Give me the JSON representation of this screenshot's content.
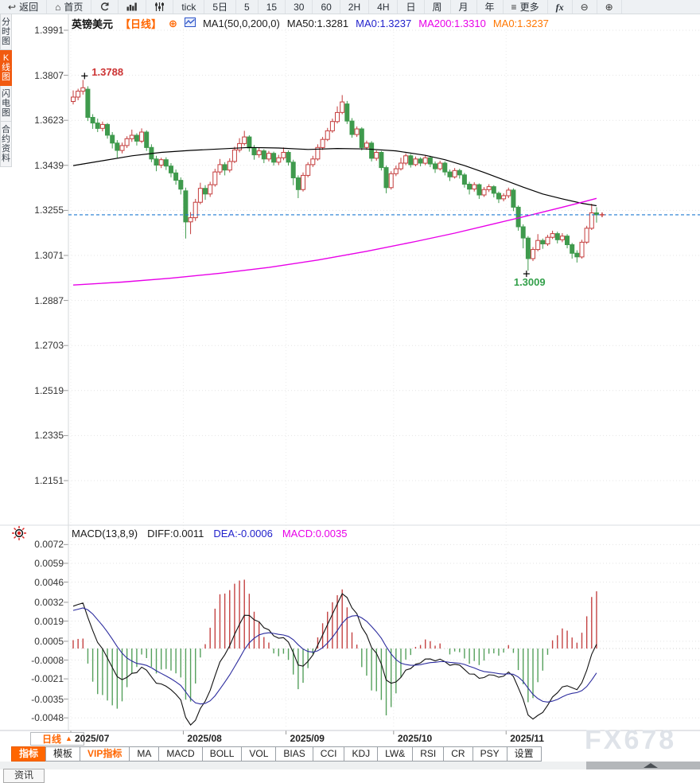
{
  "window": {
    "watermark": "FX678"
  },
  "toolbar": {
    "items": [
      {
        "id": "back",
        "icon": "back",
        "label": "返回"
      },
      {
        "id": "home",
        "icon": "home",
        "label": "首页"
      },
      {
        "id": "refresh",
        "icon": "refresh",
        "label": ""
      },
      {
        "id": "chart-style",
        "icon": "bars",
        "label": ""
      },
      {
        "id": "indicator-settings",
        "icon": "sliders",
        "label": ""
      },
      {
        "id": "tick",
        "label": "tick"
      },
      {
        "id": "range-5d",
        "label": "5日"
      },
      {
        "id": "period-5m",
        "label": "5"
      },
      {
        "id": "period-15m",
        "label": "15"
      },
      {
        "id": "period-30m",
        "label": "30"
      },
      {
        "id": "period-60m",
        "label": "60"
      },
      {
        "id": "period-2h",
        "label": "2H"
      },
      {
        "id": "period-4h",
        "label": "4H"
      },
      {
        "id": "period-day",
        "label": "日"
      },
      {
        "id": "period-week",
        "label": "周"
      },
      {
        "id": "period-month",
        "label": "月"
      },
      {
        "id": "period-year",
        "label": "年"
      },
      {
        "id": "more",
        "icon": "menu",
        "label": "更多"
      },
      {
        "id": "fx",
        "icon": "fx",
        "label": "fx"
      },
      {
        "id": "zoom-out",
        "icon": "zoom-out",
        "label": ""
      },
      {
        "id": "zoom-in",
        "icon": "zoom-in",
        "label": ""
      }
    ]
  },
  "sidebar": {
    "items": [
      {
        "id": "time-share-chart",
        "label": "分时图",
        "active": false
      },
      {
        "id": "kline-chart",
        "label": "K线图",
        "active": true
      },
      {
        "id": "lightning-chart",
        "label": "闪电图",
        "active": false
      },
      {
        "id": "contract-info",
        "label": "合约资料",
        "active": false
      }
    ]
  },
  "legend": {
    "symbol": "英镑美元",
    "period": "【日线】",
    "plus_icon": "⊕",
    "ma1": "MA1(50,0,200,0)",
    "ma50": "MA50:1.3281",
    "ma0_blue": "MA0:1.3237",
    "ma200": "MA200:1.3310",
    "ma0_orange": "MA0:1.3237"
  },
  "macd_header": {
    "title": "MACD(13,8,9)",
    "diff": "DIFF:0.0011",
    "dea": "DEA:-0.0006",
    "macd": "MACD:0.0035"
  },
  "annotations": {
    "high": "1.3788",
    "low": "1.3009"
  },
  "bottom": {
    "period_selector": "日线",
    "tabs": [
      {
        "label": "指标",
        "state": "active"
      },
      {
        "label": "模板"
      },
      {
        "label": "VIP指标",
        "state": "vip"
      },
      {
        "label": "MA"
      },
      {
        "label": "MACD"
      },
      {
        "label": "BOLL"
      },
      {
        "label": "VOL"
      },
      {
        "label": "BIAS"
      },
      {
        "label": "CCI"
      },
      {
        "label": "KDJ"
      },
      {
        "label": "LW&"
      },
      {
        "label": "RSI"
      },
      {
        "label": "CR"
      },
      {
        "label": "PSY"
      },
      {
        "label": "设置"
      }
    ],
    "news_tab": "资讯"
  },
  "chart_data": {
    "type": "candlestick+macd",
    "symbol": "英镑美元 (GBP/USD)",
    "timeframe": "日线 (daily)",
    "title": "英镑美元【日线】",
    "price_axis": [
      "1.3991",
      "1.3807",
      "1.3623",
      "1.3439",
      "1.3255",
      "1.3071",
      "1.2887",
      "1.2703",
      "1.2519",
      "1.2335",
      "1.2151"
    ],
    "macd_axis": [
      "0.0072",
      "0.0059",
      "0.0046",
      "0.0032",
      "0.0019",
      "0.0005",
      "-0.0008",
      "-0.0021",
      "-0.0035",
      "-0.0048"
    ],
    "months": [
      {
        "label": "2025/07",
        "idx": 0
      },
      {
        "label": "2025/08",
        "idx": 23
      },
      {
        "label": "2025/09",
        "idx": 44
      },
      {
        "label": "2025/10",
        "idx": 66
      },
      {
        "label": "2025/11",
        "idx": 89
      }
    ],
    "current_price": 1.3237,
    "high_idx": 2,
    "low_idx": 93,
    "macd_params": [
      13,
      8,
      9
    ],
    "macd_last": {
      "diff": 0.0011,
      "dea": -0.0006,
      "macd": 0.0035
    },
    "ma_last": {
      "ma50": 1.3281,
      "ma200": 1.331
    },
    "macd_warmup": [
      1.347,
      1.35,
      1.353,
      1.3558,
      1.3585,
      1.3605,
      1.3625,
      1.3618,
      1.364,
      1.3658,
      1.3648,
      1.3668,
      1.368,
      1.3692,
      1.37
    ],
    "ohlc": [
      [
        1.37,
        1.3745,
        1.3688,
        1.3718
      ],
      [
        1.3718,
        1.3752,
        1.3705,
        1.3742
      ],
      [
        1.3742,
        1.3788,
        1.3728,
        1.3756
      ],
      [
        1.375,
        1.3762,
        1.362,
        1.3635
      ],
      [
        1.3635,
        1.3648,
        1.3588,
        1.3612
      ],
      [
        1.3612,
        1.363,
        1.3575,
        1.359
      ],
      [
        1.359,
        1.3618,
        1.3578,
        1.3606
      ],
      [
        1.3606,
        1.3612,
        1.3548,
        1.3562
      ],
      [
        1.3562,
        1.3575,
        1.3508,
        1.353
      ],
      [
        1.353,
        1.3542,
        1.347,
        1.35
      ],
      [
        1.35,
        1.3532,
        1.3488,
        1.352
      ],
      [
        1.352,
        1.3558,
        1.351,
        1.3548
      ],
      [
        1.3548,
        1.3585,
        1.3535,
        1.3562
      ],
      [
        1.3562,
        1.357,
        1.352,
        1.3538
      ],
      [
        1.3538,
        1.359,
        1.353,
        1.3575
      ],
      [
        1.3575,
        1.3582,
        1.3498,
        1.3512
      ],
      [
        1.3512,
        1.3525,
        1.3452,
        1.3465
      ],
      [
        1.3465,
        1.3478,
        1.3415,
        1.344
      ],
      [
        1.344,
        1.347,
        1.3428,
        1.3462
      ],
      [
        1.3462,
        1.3472,
        1.342,
        1.3436
      ],
      [
        1.3436,
        1.3448,
        1.339,
        1.3408
      ],
      [
        1.3408,
        1.3422,
        1.336,
        1.3378
      ],
      [
        1.3378,
        1.339,
        1.332,
        1.3342
      ],
      [
        1.3335,
        1.3348,
        1.314,
        1.3208
      ],
      [
        1.3208,
        1.3248,
        1.3158,
        1.3225
      ],
      [
        1.3225,
        1.3302,
        1.3212,
        1.3288
      ],
      [
        1.3288,
        1.3368,
        1.328,
        1.3345
      ],
      [
        1.3345,
        1.3358,
        1.3298,
        1.3322
      ],
      [
        1.3322,
        1.3372,
        1.331,
        1.336
      ],
      [
        1.336,
        1.3425,
        1.3352,
        1.3412
      ],
      [
        1.3412,
        1.3465,
        1.34,
        1.3442
      ],
      [
        1.3442,
        1.3452,
        1.3398,
        1.342
      ],
      [
        1.342,
        1.3468,
        1.341,
        1.3455
      ],
      [
        1.3455,
        1.3515,
        1.3448,
        1.3502
      ],
      [
        1.3502,
        1.355,
        1.3492,
        1.3528
      ],
      [
        1.3528,
        1.358,
        1.352,
        1.3555
      ],
      [
        1.3555,
        1.3562,
        1.3495,
        1.351
      ],
      [
        1.351,
        1.3522,
        1.3462,
        1.3482
      ],
      [
        1.3482,
        1.351,
        1.347,
        1.3498
      ],
      [
        1.3498,
        1.3505,
        1.3448,
        1.3465
      ],
      [
        1.3465,
        1.3498,
        1.3455,
        1.3488
      ],
      [
        1.3488,
        1.3495,
        1.3438,
        1.3452
      ],
      [
        1.3452,
        1.3482,
        1.344,
        1.347
      ],
      [
        1.347,
        1.3512,
        1.346,
        1.3492
      ],
      [
        1.3492,
        1.35,
        1.3438,
        1.3452
      ],
      [
        1.3452,
        1.3462,
        1.3358,
        1.3388
      ],
      [
        1.3388,
        1.3398,
        1.3305,
        1.334
      ],
      [
        1.334,
        1.341,
        1.3332,
        1.3398
      ],
      [
        1.3398,
        1.3452,
        1.339,
        1.3442
      ],
      [
        1.3442,
        1.3478,
        1.3432,
        1.3465
      ],
      [
        1.3465,
        1.3525,
        1.3458,
        1.3512
      ],
      [
        1.3512,
        1.3555,
        1.3502,
        1.3545
      ],
      [
        1.3545,
        1.3592,
        1.3538,
        1.358
      ],
      [
        1.358,
        1.363,
        1.3572,
        1.3618
      ],
      [
        1.3618,
        1.368,
        1.361,
        1.3655
      ],
      [
        1.3655,
        1.3726,
        1.3648,
        1.3698
      ],
      [
        1.369,
        1.3702,
        1.3608,
        1.362
      ],
      [
        1.362,
        1.3632,
        1.3552,
        1.3565
      ],
      [
        1.3565,
        1.3598,
        1.3555,
        1.3588
      ],
      [
        1.3588,
        1.3595,
        1.35,
        1.3512
      ],
      [
        1.3512,
        1.354,
        1.3502,
        1.353
      ],
      [
        1.353,
        1.3538,
        1.3455,
        1.3468
      ],
      [
        1.3468,
        1.35,
        1.3458,
        1.3492
      ],
      [
        1.3492,
        1.3498,
        1.3418,
        1.343
      ],
      [
        1.343,
        1.3438,
        1.3325,
        1.3348
      ],
      [
        1.3348,
        1.3415,
        1.334,
        1.3405
      ],
      [
        1.3405,
        1.3438,
        1.3395,
        1.3425
      ],
      [
        1.3425,
        1.347,
        1.3418,
        1.3448
      ],
      [
        1.3448,
        1.3488,
        1.344,
        1.3478
      ],
      [
        1.3478,
        1.3485,
        1.343,
        1.3442
      ],
      [
        1.3442,
        1.3475,
        1.3435,
        1.3465
      ],
      [
        1.3465,
        1.3472,
        1.3435,
        1.3448
      ],
      [
        1.3448,
        1.348,
        1.344,
        1.347
      ],
      [
        1.347,
        1.3478,
        1.3432,
        1.3445
      ],
      [
        1.3445,
        1.3455,
        1.3408,
        1.3425
      ],
      [
        1.3425,
        1.3458,
        1.3418,
        1.3448
      ],
      [
        1.3448,
        1.3455,
        1.3398,
        1.3412
      ],
      [
        1.3412,
        1.3422,
        1.3375,
        1.3392
      ],
      [
        1.3392,
        1.3428,
        1.3385,
        1.3418
      ],
      [
        1.3418,
        1.3425,
        1.3385,
        1.34
      ],
      [
        1.34,
        1.3408,
        1.3348,
        1.3362
      ],
      [
        1.3362,
        1.3372,
        1.332,
        1.3342
      ],
      [
        1.3342,
        1.337,
        1.3332,
        1.336
      ],
      [
        1.336,
        1.3365,
        1.3302,
        1.3318
      ],
      [
        1.3318,
        1.335,
        1.331,
        1.334
      ],
      [
        1.334,
        1.3362,
        1.333,
        1.3352
      ],
      [
        1.3352,
        1.3358,
        1.3308,
        1.3325
      ],
      [
        1.3325,
        1.3332,
        1.3285,
        1.3302
      ],
      [
        1.3302,
        1.3325,
        1.3292,
        1.3315
      ],
      [
        1.3315,
        1.3348,
        1.3305,
        1.3338
      ],
      [
        1.3338,
        1.3345,
        1.3252,
        1.3268
      ],
      [
        1.3268,
        1.3275,
        1.3172,
        1.3188
      ],
      [
        1.3188,
        1.3198,
        1.31,
        1.3142
      ],
      [
        1.3142,
        1.315,
        1.3009,
        1.3058
      ],
      [
        1.3058,
        1.3105,
        1.3048,
        1.3095
      ],
      [
        1.3095,
        1.3158,
        1.3088,
        1.3132
      ],
      [
        1.3132,
        1.314,
        1.3098,
        1.3118
      ],
      [
        1.3118,
        1.3155,
        1.311,
        1.3145
      ],
      [
        1.3145,
        1.3172,
        1.3138,
        1.316
      ],
      [
        1.316,
        1.3168,
        1.312,
        1.3135
      ],
      [
        1.3135,
        1.3162,
        1.3125,
        1.315
      ],
      [
        1.315,
        1.3158,
        1.31,
        1.3115
      ],
      [
        1.3115,
        1.3122,
        1.3058,
        1.308
      ],
      [
        1.308,
        1.3092,
        1.3042,
        1.3065
      ],
      [
        1.3065,
        1.3135,
        1.3058,
        1.3125
      ],
      [
        1.3125,
        1.3192,
        1.3118,
        1.3182
      ],
      [
        1.3182,
        1.3282,
        1.3175,
        1.3245
      ],
      [
        1.3245,
        1.3268,
        1.3205,
        1.3237
      ]
    ],
    "ma50_points": [
      [
        0,
        1.3438
      ],
      [
        6,
        1.3458
      ],
      [
        12,
        1.3478
      ],
      [
        18,
        1.3492
      ],
      [
        24,
        1.35
      ],
      [
        30,
        1.3506
      ],
      [
        36,
        1.3512
      ],
      [
        42,
        1.351
      ],
      [
        48,
        1.3504
      ],
      [
        54,
        1.3508
      ],
      [
        60,
        1.3506
      ],
      [
        66,
        1.3498
      ],
      [
        72,
        1.348
      ],
      [
        76,
        1.3462
      ],
      [
        80,
        1.3438
      ],
      [
        84,
        1.341
      ],
      [
        88,
        1.338
      ],
      [
        92,
        1.335
      ],
      [
        96,
        1.3322
      ],
      [
        100,
        1.3302
      ],
      [
        104,
        1.3284
      ],
      [
        107,
        1.3274
      ]
    ],
    "ma200_points": [
      [
        0,
        1.295
      ],
      [
        10,
        1.2962
      ],
      [
        20,
        1.2978
      ],
      [
        30,
        1.2998
      ],
      [
        40,
        1.3022
      ],
      [
        50,
        1.3052
      ],
      [
        60,
        1.3088
      ],
      [
        70,
        1.3128
      ],
      [
        78,
        1.3162
      ],
      [
        86,
        1.32
      ],
      [
        94,
        1.3238
      ],
      [
        100,
        1.3268
      ],
      [
        104,
        1.3288
      ],
      [
        107,
        1.3304
      ]
    ],
    "colors": {
      "up": "#c43c3c",
      "down": "#3f9a4d",
      "ma50": "#000000",
      "ma200": "#e800e8",
      "dif": "#111111",
      "dea": "#2c2c9e",
      "macd_up": "#c44242",
      "macd_down": "#55a05c",
      "current_line": "#1d7ad2",
      "accent": "#ff6600",
      "grid": "#e4e4e4",
      "annotation_high": "#cc3333",
      "annotation_low": "#33a04a"
    }
  }
}
